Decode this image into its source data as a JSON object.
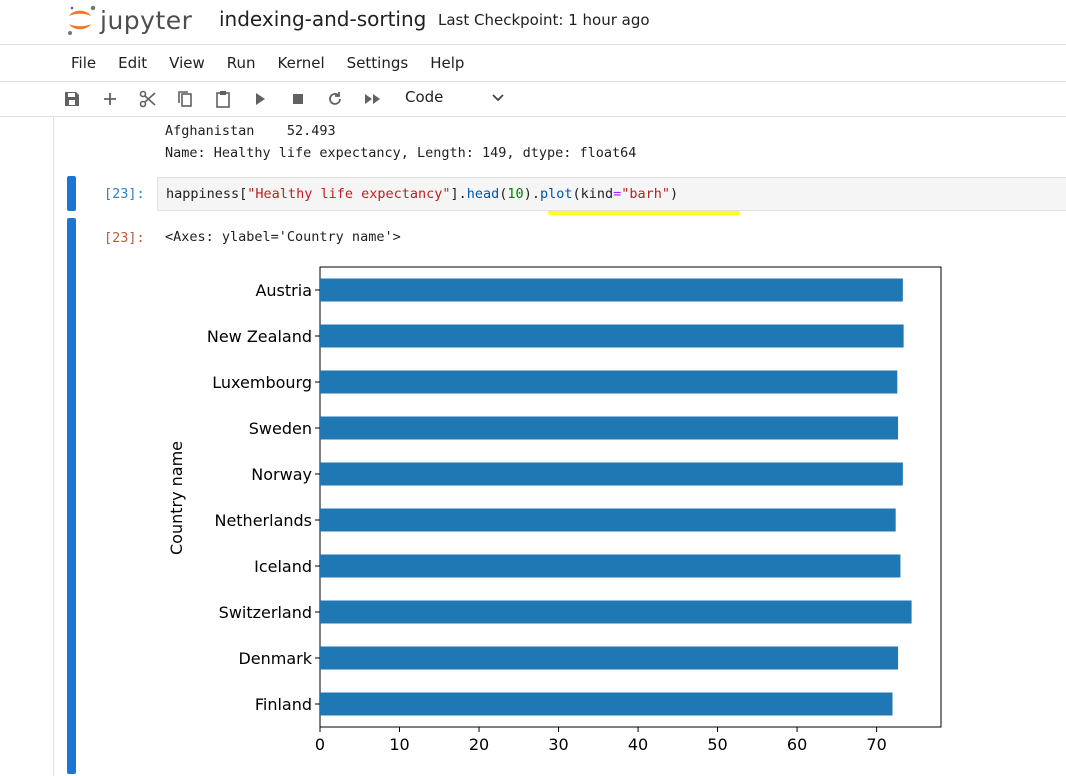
{
  "header": {
    "logo_text": "jupyter",
    "notebook_name": "indexing-and-sorting",
    "checkpoint": "Last Checkpoint: 1 hour ago"
  },
  "menu": [
    "File",
    "Edit",
    "View",
    "Run",
    "Kernel",
    "Settings",
    "Help"
  ],
  "toolbar": {
    "icons": [
      "save-icon",
      "add-cell-icon",
      "cut-icon",
      "copy-icon",
      "paste-icon",
      "run-icon",
      "stop-icon",
      "restart-icon",
      "fast-forward-icon"
    ],
    "cell_type": "Code"
  },
  "prev_output": {
    "line1": "Afghanistan    52.493",
    "line2": "Name: Healthy life expectancy, Length: 149, dtype: float64"
  },
  "cell": {
    "prompt_in": "[23]:",
    "code_tokens": [
      {
        "t": "happiness",
        "c": "name"
      },
      {
        "t": "[",
        "c": "name"
      },
      {
        "t": "\"Healthy life expectancy\"",
        "c": "str"
      },
      {
        "t": "].",
        "c": "name"
      },
      {
        "t": "head",
        "c": "fn"
      },
      {
        "t": "(",
        "c": "name"
      },
      {
        "t": "10",
        "c": "num"
      },
      {
        "t": ").",
        "c": "name"
      },
      {
        "t": "plot",
        "c": "fn"
      },
      {
        "t": "(kind",
        "c": "name"
      },
      {
        "t": "=",
        "c": "op"
      },
      {
        "t": "\"barh\"",
        "c": "str"
      },
      {
        "t": ")",
        "c": "name"
      }
    ],
    "prompt_out": "[23]:",
    "output_text": "<Axes: ylabel='Country name'>"
  },
  "chart_data": {
    "type": "bar",
    "orientation": "horizontal",
    "categories": [
      "Finland",
      "Denmark",
      "Switzerland",
      "Iceland",
      "Netherlands",
      "Norway",
      "Sweden",
      "Luxembourg",
      "New Zealand",
      "Austria"
    ],
    "values": [
      72.0,
      72.7,
      74.4,
      73.0,
      72.4,
      73.3,
      72.7,
      72.6,
      73.4,
      73.3
    ],
    "xlabel": "",
    "ylabel": "Country name",
    "xticks": [
      0,
      10,
      20,
      30,
      40,
      50,
      60,
      70
    ],
    "xlim": [
      0,
      78.1
    ],
    "bar_color": "#1f77b4",
    "grid": false
  },
  "colors": {
    "accent": "#1976d2",
    "jupyter_orange": "#f37726",
    "highlight": "#ffff00"
  }
}
